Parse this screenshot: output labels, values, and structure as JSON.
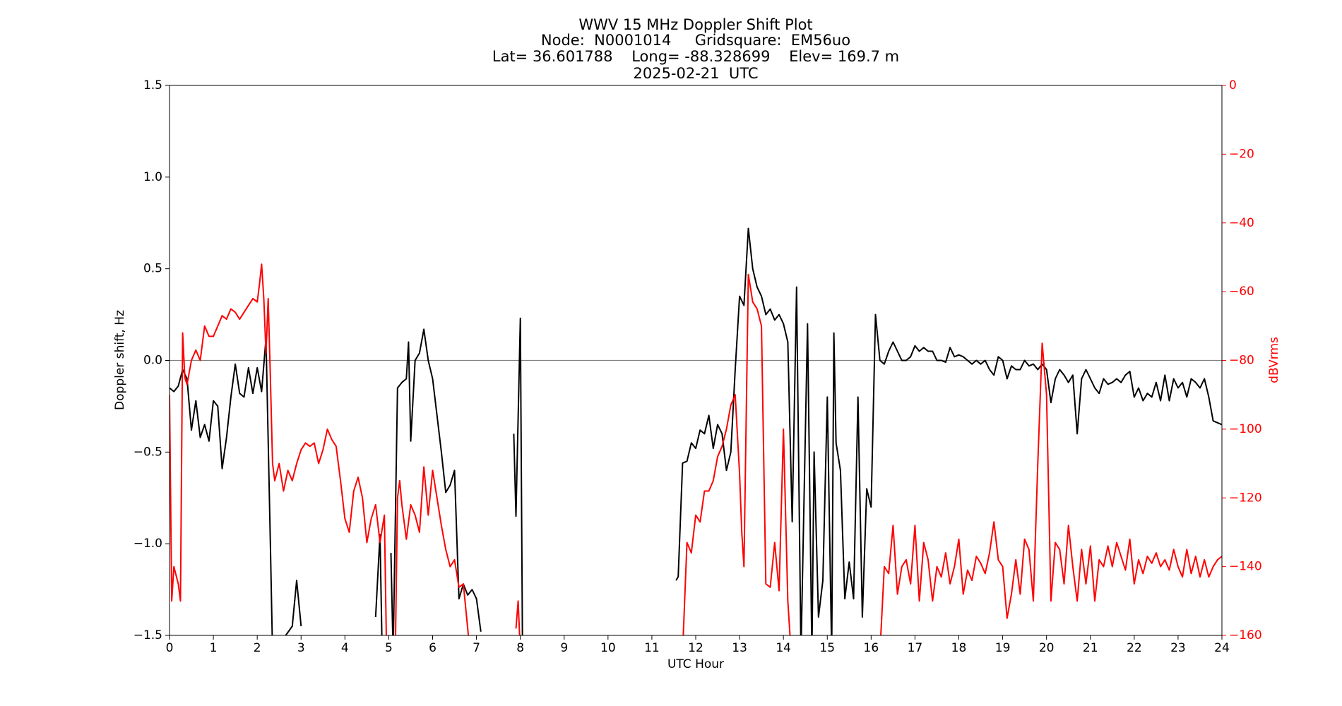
{
  "chart_data": {
    "type": "line",
    "title": "WWV 15 MHz Doppler Shift Plot",
    "subtitle": [
      "Node:  N0001014     Gridsquare:  EM56uo",
      "Lat= 36.601788    Long= -88.328699    Elev= 169.7 m",
      "2025-02-21  UTC"
    ],
    "xlabel": "UTC Hour",
    "ylabel": "Doppler shift, Hz",
    "y2label": "dBVrms",
    "xlim": [
      0,
      24
    ],
    "xticks": [
      0,
      1,
      2,
      3,
      4,
      5,
      6,
      7,
      8,
      9,
      10,
      11,
      12,
      13,
      14,
      15,
      16,
      17,
      18,
      19,
      20,
      21,
      22,
      23,
      24
    ],
    "ylim": [
      -1.5,
      1.5
    ],
    "yticks": [
      {
        "value": -1.5,
        "label": "−1.5"
      },
      {
        "value": -1.0,
        "label": "−1.0"
      },
      {
        "value": -0.5,
        "label": "−0.5"
      },
      {
        "value": 0,
        "label": "0.0"
      },
      0.5,
      {
        "value": 1.0,
        "label": "1.0"
      },
      1.5
    ],
    "y2lim": [
      -160,
      0
    ],
    "y2ticks": [
      {
        "value": -160,
        "label": "−160"
      },
      {
        "value": -140,
        "label": "−140"
      },
      {
        "value": -120,
        "label": "−120"
      },
      {
        "value": -100,
        "label": "−100"
      },
      {
        "value": -80,
        "label": "−80"
      },
      {
        "value": -60,
        "label": "−60"
      },
      {
        "value": -40,
        "label": "−40"
      },
      {
        "value": -20,
        "label": "−20"
      },
      0
    ],
    "y2color": "#ff0000",
    "reference_line": 0,
    "series": [
      {
        "color": "#000000",
        "x": [
          0,
          0.1,
          0.2,
          0.3,
          0.4,
          0.5,
          0.6,
          0.7,
          0.8,
          0.9,
          1.0,
          1.1,
          1.2,
          1.3,
          1.4,
          1.5,
          1.6,
          1.7,
          1.8,
          1.9,
          2.0,
          2.1,
          2.2,
          2.3,
          2.35,
          2.8,
          2.9,
          3.0,
          3.05,
          4.7,
          4.8,
          4.85,
          4.95,
          5.05,
          5.1,
          5.2,
          5.3,
          5.4,
          5.45,
          5.5,
          5.6,
          5.7,
          5.8,
          5.9,
          6.0,
          6.1,
          6.2,
          6.3,
          6.4,
          6.5,
          6.6,
          6.7,
          6.8,
          6.9,
          7.0,
          7.1,
          7.2,
          7.6,
          7.7,
          7.85,
          7.9,
          8.0,
          8.05,
          8.1,
          11.55,
          11.6,
          11.7,
          11.8,
          11.9,
          12.0,
          12.1,
          12.2,
          12.3,
          12.4,
          12.5,
          12.6,
          12.7,
          12.8,
          12.9,
          13.0,
          13.1,
          13.2,
          13.3,
          13.4,
          13.5,
          13.6,
          13.7,
          13.8,
          13.9,
          14.0,
          14.1,
          14.2,
          14.3,
          14.4,
          14.55,
          14.65,
          14.7,
          14.8,
          14.9,
          15.0,
          15.1,
          15.15,
          15.2,
          15.3,
          15.4,
          15.5,
          15.6,
          15.7,
          15.8,
          15.9,
          16.0,
          16.1,
          16.2,
          16.3,
          16.4,
          16.5,
          16.6,
          16.7,
          16.8,
          16.9,
          17.0,
          17.1,
          17.2,
          17.3,
          17.4,
          17.5,
          17.6,
          17.7,
          17.8,
          17.9,
          18.0,
          18.1,
          18.2,
          18.3,
          18.4,
          18.5,
          18.6,
          18.7,
          18.8,
          18.9,
          19.0,
          19.1,
          19.2,
          19.3,
          19.4,
          19.5,
          19.6,
          19.7,
          19.8,
          19.9,
          20.0,
          20.1,
          20.2,
          20.3,
          20.4,
          20.5,
          20.6,
          20.7,
          20.8,
          20.9,
          21.0,
          21.1,
          21.2,
          21.3,
          21.4,
          21.5,
          21.6,
          21.7,
          21.8,
          21.9,
          22.0,
          22.1,
          22.2,
          22.3,
          22.4,
          22.5,
          22.6,
          22.7,
          22.8,
          22.9,
          23.0,
          23.1,
          23.2,
          23.3,
          23.4,
          23.5,
          23.6,
          23.7,
          23.8,
          23.9,
          24.0
        ],
        "values": [
          -0.15,
          -0.17,
          -0.14,
          -0.05,
          -0.1,
          -0.38,
          -0.22,
          -0.42,
          -0.35,
          -0.44,
          -0.22,
          -0.25,
          -0.59,
          -0.42,
          -0.2,
          -0.02,
          -0.18,
          -0.2,
          -0.04,
          -0.18,
          -0.04,
          -0.17,
          0.12,
          -1.0,
          -1.6,
          -1.45,
          -1.2,
          -1.45,
          null,
          -1.4,
          -0.95,
          -1.6,
          null,
          -1.05,
          -1.6,
          -0.15,
          -0.12,
          -0.1,
          0.1,
          -0.44,
          0.0,
          0.04,
          0.17,
          0.0,
          -0.1,
          -0.3,
          -0.5,
          -0.72,
          -0.68,
          -0.6,
          -1.3,
          -1.22,
          -1.28,
          -1.25,
          -1.3,
          -1.48,
          null,
          -1.3,
          null,
          -0.4,
          -0.85,
          0.23,
          -1.6,
          null,
          -1.2,
          -1.18,
          -0.56,
          -0.55,
          -0.45,
          -0.48,
          -0.38,
          -0.4,
          -0.3,
          -0.48,
          -0.35,
          -0.4,
          -0.6,
          -0.5,
          -0.05,
          0.35,
          0.3,
          0.72,
          0.5,
          0.4,
          0.35,
          0.25,
          0.28,
          0.22,
          0.25,
          0.2,
          0.1,
          -0.88,
          0.4,
          -1.6,
          0.2,
          -1.6,
          -0.5,
          -1.4,
          -1.2,
          -0.2,
          -1.6,
          0.15,
          -0.45,
          -0.6,
          -1.3,
          -1.1,
          -1.3,
          -0.2,
          -1.4,
          -0.7,
          -0.8,
          0.25,
          0.0,
          -0.02,
          0.05,
          0.1,
          0.05,
          0.0,
          0.0,
          0.02,
          0.08,
          0.05,
          0.07,
          0.05,
          0.05,
          0.0,
          0.0,
          -0.01,
          0.07,
          0.02,
          0.03,
          0.02,
          0.0,
          -0.02,
          0.0,
          -0.02,
          0.0,
          -0.05,
          -0.08,
          0.02,
          0.0,
          -0.1,
          -0.03,
          -0.05,
          -0.05,
          0.0,
          -0.03,
          -0.02,
          -0.05,
          -0.02,
          -0.05,
          -0.23,
          -0.1,
          -0.05,
          -0.08,
          -0.12,
          -0.08,
          -0.4,
          -0.1,
          -0.05,
          -0.1,
          -0.15,
          -0.18,
          -0.1,
          -0.13,
          -0.12,
          -0.1,
          -0.12,
          -0.08,
          -0.06,
          -0.2,
          -0.15,
          -0.22,
          -0.18,
          -0.2,
          -0.12,
          -0.22,
          -0.08,
          -0.22,
          -0.1,
          -0.15,
          -0.12,
          -0.2,
          -0.1,
          -0.12,
          -0.15,
          -0.1,
          -0.2,
          -0.33,
          -0.34,
          -0.35
        ]
      },
      {
        "color": "#ff0000",
        "axis": "y2",
        "x": [
          0,
          0.05,
          0.1,
          0.2,
          0.25,
          0.3,
          0.35,
          0.4,
          0.5,
          0.6,
          0.7,
          0.8,
          0.9,
          1.0,
          1.1,
          1.2,
          1.3,
          1.4,
          1.5,
          1.6,
          1.7,
          1.8,
          1.9,
          2.0,
          2.05,
          2.1,
          2.15,
          2.2,
          2.25,
          2.3,
          2.35,
          2.4,
          2.5,
          2.6,
          2.7,
          2.8,
          2.9,
          3.0,
          3.1,
          3.2,
          3.3,
          3.4,
          3.5,
          3.6,
          3.7,
          3.8,
          3.9,
          4.0,
          4.1,
          4.2,
          4.3,
          4.4,
          4.5,
          4.6,
          4.7,
          4.8,
          4.9,
          4.95,
          5.0,
          5.15,
          5.2,
          5.25,
          5.3,
          5.4,
          5.5,
          5.6,
          5.7,
          5.8,
          5.9,
          6.0,
          6.1,
          6.2,
          6.3,
          6.4,
          6.5,
          6.6,
          6.7,
          6.8,
          6.85,
          7.8,
          7.9,
          7.95,
          8.0,
          11.7,
          11.8,
          11.9,
          12.0,
          12.1,
          12.2,
          12.3,
          12.4,
          12.5,
          12.6,
          12.7,
          12.8,
          12.9,
          13.0,
          13.05,
          13.1,
          13.2,
          13.3,
          13.4,
          13.5,
          13.6,
          13.7,
          13.8,
          13.9,
          14.0,
          14.1,
          14.15,
          14.2,
          16.2,
          16.3,
          16.4,
          16.5,
          16.6,
          16.7,
          16.8,
          16.9,
          17.0,
          17.1,
          17.2,
          17.3,
          17.4,
          17.5,
          17.6,
          17.7,
          17.8,
          17.9,
          18.0,
          18.1,
          18.2,
          18.3,
          18.4,
          18.5,
          18.6,
          18.7,
          18.8,
          18.9,
          19.0,
          19.1,
          19.2,
          19.3,
          19.4,
          19.5,
          19.6,
          19.7,
          19.8,
          19.9,
          20.0,
          20.1,
          20.2,
          20.3,
          20.4,
          20.5,
          20.6,
          20.7,
          20.8,
          20.9,
          21.0,
          21.1,
          21.2,
          21.3,
          21.4,
          21.5,
          21.6,
          21.7,
          21.8,
          21.9,
          22.0,
          22.1,
          22.2,
          22.3,
          22.4,
          22.5,
          22.6,
          22.7,
          22.8,
          22.9,
          23.0,
          23.1,
          23.2,
          23.3,
          23.4,
          23.5,
          23.6,
          23.7,
          23.8,
          23.9,
          24.0
        ],
        "values": [
          -90,
          -150,
          -140,
          -145,
          -150,
          -72,
          -85,
          -87,
          -80,
          -77,
          -80,
          -70,
          -73,
          -73,
          -70,
          -67,
          -68,
          -65,
          -66,
          -68,
          -66,
          -64,
          -62,
          -63,
          -58,
          -52,
          -62,
          -78,
          -62,
          -85,
          -110,
          -115,
          -110,
          -118,
          -112,
          -115,
          -110,
          -106,
          -104,
          -105,
          -104,
          -110,
          -106,
          -100,
          -103,
          -105,
          -115,
          -126,
          -130,
          -118,
          -114,
          -120,
          -133,
          -126,
          -122,
          -133,
          -125,
          -165,
          null,
          -165,
          -120,
          -115,
          -122,
          -132,
          -122,
          -125,
          -130,
          -111,
          -125,
          -112,
          -120,
          -128,
          -135,
          -140,
          -138,
          -146,
          -145,
          -158,
          -165,
          null,
          -158,
          -150,
          -165,
          -165,
          -133,
          -136,
          -125,
          -127,
          -118,
          -118,
          -115,
          -108,
          -105,
          -100,
          -93,
          -90,
          -113,
          -130,
          -140,
          -55,
          -63,
          -65,
          -70,
          -145,
          -146,
          -133,
          -147,
          -100,
          -150,
          -160,
          -165,
          -165,
          -140,
          -142,
          -128,
          -148,
          -140,
          -138,
          -145,
          -128,
          -150,
          -133,
          -138,
          -150,
          -140,
          -143,
          -136,
          -145,
          -140,
          -132,
          -148,
          -141,
          -144,
          -137,
          -139,
          -142,
          -136,
          -127,
          -138,
          -140,
          -155,
          -148,
          -138,
          -148,
          -132,
          -135,
          -150,
          -110,
          -75,
          -90,
          -150,
          -133,
          -135,
          -145,
          -128,
          -140,
          -150,
          -135,
          -145,
          -134,
          -150,
          -138,
          -140,
          -134,
          -140,
          -133,
          -137,
          -141,
          -132,
          -145,
          -138,
          -142,
          -137,
          -139,
          -136,
          -140,
          -138,
          -141,
          -135,
          -140,
          -143,
          -135,
          -142,
          -137,
          -143,
          -138,
          -143,
          -140,
          -138,
          -137
        ]
      }
    ]
  }
}
